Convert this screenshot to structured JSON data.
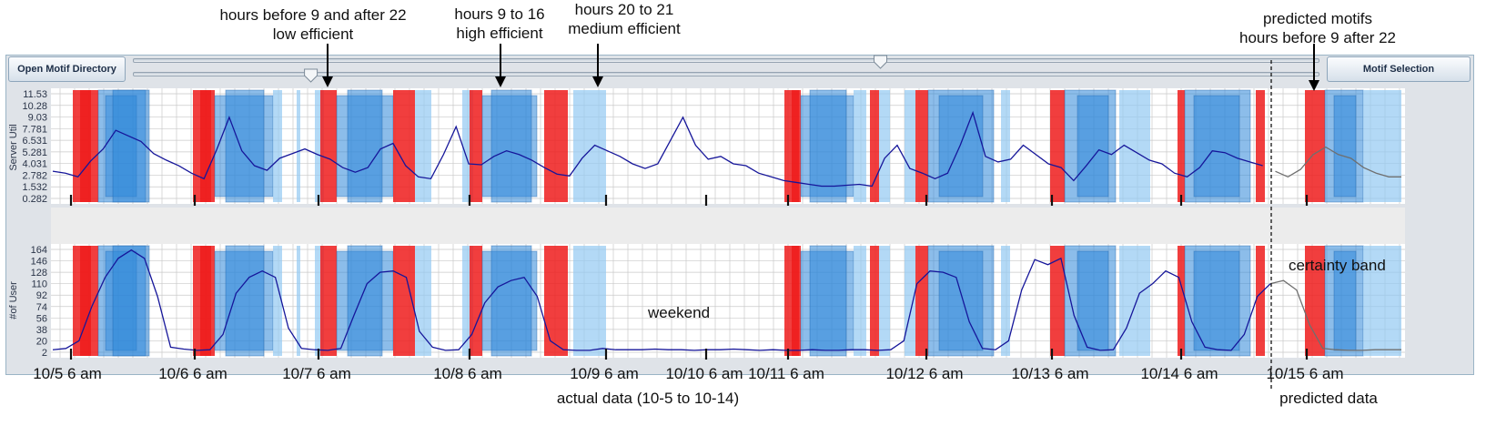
{
  "toolbar": {
    "open_label": "Open Motif Directory",
    "motif_label": "Motif Selection",
    "slider_upper_value": 0.63,
    "slider_lower_value": 0.15
  },
  "annotations": {
    "low": [
      "hours before 9 and after 22",
      "low efficient"
    ],
    "high": [
      "hours 9 to 16",
      "high efficient"
    ],
    "medium": [
      "hours 20 to 21",
      "medium efficient"
    ],
    "predicted": [
      "predicted motifs",
      "hours before 9 after 22"
    ],
    "weekend": "weekend",
    "certainty": "certainty band",
    "actual": "actual data (10-5 to 10-14)",
    "predicted_data": "predicted data"
  },
  "colors": {
    "low": "#ee1c1c",
    "high": "#2e86d8",
    "medium": "#93c9f2",
    "actual_line": "#16169a",
    "predicted_line": "#6f6f6f",
    "grid": "#c9c9c9"
  },
  "chart_data": [
    {
      "type": "line",
      "ylabel": "Server Util",
      "y_ticks": [
        "11.53",
        "10.28",
        "9.03",
        "7.781",
        "6.531",
        "5.281",
        "4.031",
        "2.782",
        "1.532",
        "0.282"
      ],
      "ylim": [
        0.282,
        11.53
      ],
      "x_ticks": [
        "10/5 6 am",
        "10/6 6 am",
        "10/7 6 am",
        "10/8 6 am",
        "10/9 6 am",
        "10/10 6 am",
        "10/11 6 am",
        "10/12 6 am",
        "10/13 6 am",
        "10/14 6 am",
        "10/15 6 am"
      ],
      "grid": true,
      "series": [
        {
          "values": [
            3.2,
            3.0,
            2.6,
            4.3,
            5.6,
            7.6,
            7.0,
            6.4,
            5.1,
            4.4,
            3.8,
            3.0,
            2.4,
            5.5,
            9.0,
            5.4,
            3.8,
            3.3,
            4.6,
            5.1,
            5.6,
            5.0,
            4.5,
            3.6,
            3.1,
            3.6,
            5.6,
            6.2,
            3.8,
            2.6,
            2.4,
            5.0,
            8.0,
            4.0,
            3.9,
            4.8,
            5.4,
            5.0,
            4.4,
            3.6,
            2.9,
            2.7,
            4.6,
            6.0,
            5.4,
            4.8,
            4.0,
            3.5,
            4.0,
            6.5,
            9.0,
            6.0,
            4.5,
            4.8,
            4.0,
            3.8,
            3.0,
            2.6,
            2.2,
            2.0,
            1.8,
            1.6,
            1.6,
            1.7,
            1.8,
            1.6,
            4.6,
            6.0,
            3.5,
            3.0,
            2.4,
            3.0,
            6.0,
            9.5,
            4.8,
            4.2,
            4.5,
            6.0,
            5.0,
            4.0,
            3.6,
            2.2,
            3.8,
            5.5,
            5.0,
            6.0,
            5.2,
            4.4,
            4.0,
            3.0,
            2.6,
            3.6,
            5.4,
            5.2,
            4.6,
            4.2,
            3.8,
            3.2,
            2.6,
            3.4,
            5.0,
            5.8,
            5.0,
            4.6,
            3.6,
            3.0,
            2.6,
            2.6
          ]
        }
      ]
    },
    {
      "type": "line",
      "ylabel": "#of User",
      "y_ticks": [
        "164",
        "146",
        "128",
        "110",
        "92",
        "74",
        "56",
        "38",
        "20",
        "2"
      ],
      "ylim": [
        2,
        164
      ],
      "x_ticks": [
        "10/5 6 am",
        "10/6 6 am",
        "10/7 6 am",
        "10/8 6 am",
        "10/9 6 am",
        "10/10 6 am",
        "10/11 6 am",
        "10/12 6 am",
        "10/13 6 am",
        "10/14 6 am",
        "10/15 6 am"
      ],
      "grid": true,
      "series": [
        {
          "values": [
            6,
            8,
            20,
            75,
            120,
            150,
            163,
            150,
            90,
            10,
            7,
            5,
            6,
            30,
            95,
            120,
            130,
            120,
            40,
            8,
            6,
            5,
            8,
            60,
            110,
            128,
            130,
            120,
            35,
            10,
            5,
            6,
            30,
            80,
            105,
            115,
            120,
            90,
            20,
            6,
            5,
            5,
            8,
            6,
            6,
            6,
            7,
            6,
            6,
            5,
            6,
            6,
            7,
            6,
            5,
            6,
            5,
            5,
            6,
            5,
            5,
            6,
            6,
            5,
            6,
            20,
            110,
            130,
            128,
            120,
            50,
            8,
            6,
            20,
            100,
            148,
            140,
            150,
            60,
            10,
            5,
            6,
            40,
            95,
            110,
            130,
            120,
            50,
            10,
            6,
            5,
            30,
            90,
            110,
            115,
            100,
            45,
            8,
            6,
            5,
            5,
            6,
            6,
            6
          ]
        }
      ]
    }
  ]
}
